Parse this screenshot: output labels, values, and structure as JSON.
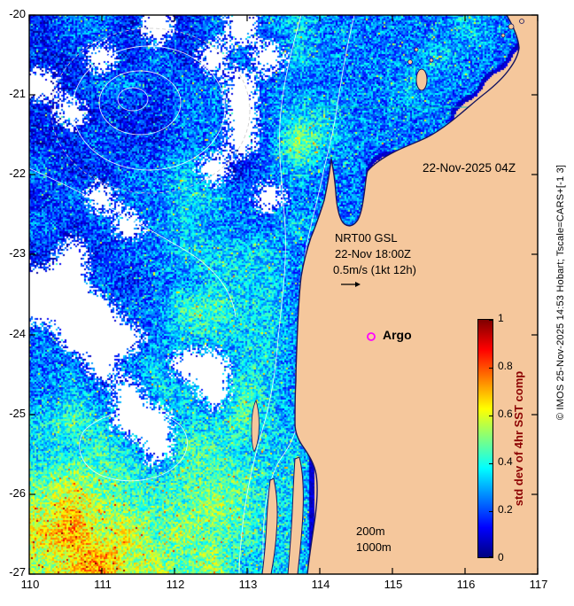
{
  "figure": {
    "bg": "#ffffff",
    "land_color": "#f5c79c",
    "coast_color": "#151560",
    "frame_color": "#000000",
    "cloud_color": "#ffffff",
    "contour_color": "#ffffff"
  },
  "axes": {
    "x_ticks": [
      "110",
      "111",
      "112",
      "113",
      "114",
      "115",
      "116",
      "117"
    ],
    "y_ticks": [
      "-20",
      "-21",
      "-22",
      "-23",
      "-24",
      "-25",
      "-26",
      "-27"
    ]
  },
  "annotations": {
    "date_label": "22-Nov-2025 04Z",
    "model_line1": "NRT00 GSL",
    "model_line2": "22-Nov 18:00Z",
    "model_line3": "0.5m/s (1kt 12h)",
    "argo_label": "Argo",
    "argo_marker_color": "#ff00ff",
    "contour_label_200": "200m",
    "contour_label_1000": "1000m",
    "credit": "© IMOS 25-Nov-2025 14:53 Hobart; Tscale=CARS+[-1 3]"
  },
  "colorbar": {
    "label": "std dev of 4hr SST comp",
    "label_color": "#8b0000",
    "ticks": [
      "1",
      "0.8",
      "0.6",
      "0.4",
      "0.2",
      "0"
    ],
    "min": 0,
    "max": 1,
    "stops": [
      "#7f0000",
      "#ff0000",
      "#ffff00",
      "#00ffff",
      "#0000ff",
      "#00007f"
    ]
  },
  "chart_data": {
    "type": "heatmap",
    "title": "",
    "xlabel": "",
    "ylabel": "",
    "xlim": [
      110,
      117
    ],
    "ylim": [
      -27,
      -20
    ],
    "zlabel": "std dev of 4hr SST comp",
    "zlim": [
      0,
      1
    ],
    "colormap": "jet",
    "grid_legend": {
      "digits": "std dev ≈ digit/10",
      "W": "cloud / no-data (white)",
      "L": "land"
    },
    "grid": [
      "1221W12W2322222322",
      "11W121W2W32222322L",
      "W122122W22222322LL",
      "1W11122W2332222LLL",
      "1121122W2532222LLL",
      "211223W12322LLLLLL",
      "12W22332W222LLLLLL",
      "212W23222322LLLLLL",
      "1W12233332LLLLLLLL",
      "WW21223332LLLLLLLL",
      "WWW2244332LLLLLLLL",
      "2WWW233332LLLLLLLL",
      "22W23WW332LLLLLLLL",
      "232W33W432LLLLLLLL",
      "343WW33432LLLLLLLL",
      "3343W44333LLLLLLLL",
      "4544344433LLLLLLLL",
      "5654445433LLLLLLLL",
      "6756454433LLLLLLLL",
      "5675545333LLLLLLLL"
    ]
  }
}
